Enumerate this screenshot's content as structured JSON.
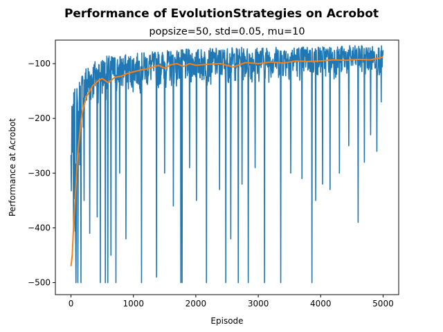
{
  "chart_data": {
    "type": "line",
    "title": "Performance of EvolutionStrategies on Acrobot",
    "subtitle": "popsize=50, std=0.05, mu=10",
    "xlabel": "Episode",
    "ylabel": "Performance at Acrobot",
    "xlim": [
      -250,
      5250
    ],
    "ylim": [
      -522,
      -57
    ],
    "xticks": [
      0,
      1000,
      2000,
      3000,
      4000,
      5000
    ],
    "yticks": [
      -500,
      -400,
      -300,
      -200,
      -100
    ],
    "grid": false,
    "legend": "none",
    "series": [
      {
        "role": "raw",
        "color": "#1f77b4",
        "x": [
          0,
          20,
          40,
          60,
          80,
          100,
          120,
          140,
          160,
          180,
          200,
          250,
          300,
          350,
          400,
          450,
          500,
          600,
          700,
          800,
          900,
          1000,
          1100,
          1200,
          1300,
          1400,
          1500,
          1600,
          1700,
          1800,
          1900,
          2000,
          2200,
          2400,
          2600,
          2800,
          3000,
          3200,
          3400,
          3600,
          3800,
          4000,
          4200,
          4400,
          4600,
          4800,
          5000
        ],
        "upper": [
          -193,
          -170,
          -155,
          -145,
          -140,
          -130,
          -125,
          -118,
          -112,
          -110,
          -105,
          -100,
          -97,
          -95,
          -92,
          -90,
          -88,
          -85,
          -84,
          -83,
          -83,
          -82,
          -80,
          -79,
          -78,
          -77,
          -76,
          -75,
          -74,
          -74,
          -73,
          -73,
          -72,
          -71,
          -70,
          -70,
          -69,
          -69,
          -68,
          -68,
          -68,
          -67,
          -67,
          -67,
          -67,
          -67,
          -67
        ],
        "lower": [
          -500,
          -500,
          -500,
          -500,
          -500,
          -430,
          -400,
          -350,
          -300,
          -270,
          -240,
          -220,
          -200,
          -190,
          -185,
          -180,
          -178,
          -175,
          -172,
          -170,
          -168,
          -165,
          -163,
          -160,
          -158,
          -157,
          -156,
          -155,
          -154,
          -153,
          -152,
          -150,
          -150,
          -148,
          -146,
          -145,
          -144,
          -142,
          -140,
          -140,
          -138,
          -137,
          -136,
          -135,
          -134,
          -132,
          -130
        ],
        "spikes": [
          {
            "x": 80,
            "y": -500
          },
          {
            "x": 110,
            "y": -500
          },
          {
            "x": 160,
            "y": -500
          },
          {
            "x": 210,
            "y": -350
          },
          {
            "x": 300,
            "y": -410
          },
          {
            "x": 420,
            "y": -380
          },
          {
            "x": 470,
            "y": -500
          },
          {
            "x": 550,
            "y": -500
          },
          {
            "x": 590,
            "y": -500
          },
          {
            "x": 640,
            "y": -450
          },
          {
            "x": 720,
            "y": -500
          },
          {
            "x": 780,
            "y": -300
          },
          {
            "x": 880,
            "y": -420
          },
          {
            "x": 1130,
            "y": -500
          },
          {
            "x": 1370,
            "y": -490
          },
          {
            "x": 1500,
            "y": -300
          },
          {
            "x": 1640,
            "y": -360
          },
          {
            "x": 1760,
            "y": -500
          },
          {
            "x": 1780,
            "y": -500
          },
          {
            "x": 1900,
            "y": -290
          },
          {
            "x": 2010,
            "y": -350
          },
          {
            "x": 2170,
            "y": -500
          },
          {
            "x": 2380,
            "y": -330
          },
          {
            "x": 2480,
            "y": -500
          },
          {
            "x": 2560,
            "y": -420
          },
          {
            "x": 2680,
            "y": -500
          },
          {
            "x": 2740,
            "y": -320
          },
          {
            "x": 2840,
            "y": -500
          },
          {
            "x": 2950,
            "y": -290
          },
          {
            "x": 3100,
            "y": -500
          },
          {
            "x": 3360,
            "y": -500
          },
          {
            "x": 3520,
            "y": -300
          },
          {
            "x": 3700,
            "y": -310
          },
          {
            "x": 3860,
            "y": -500
          },
          {
            "x": 3920,
            "y": -350
          },
          {
            "x": 4030,
            "y": -320
          },
          {
            "x": 4150,
            "y": -330
          },
          {
            "x": 4300,
            "y": -300
          },
          {
            "x": 4450,
            "y": -250
          },
          {
            "x": 4600,
            "y": -390
          },
          {
            "x": 4700,
            "y": -280
          },
          {
            "x": 4800,
            "y": -230
          },
          {
            "x": 4900,
            "y": -260
          },
          {
            "x": 4970,
            "y": -170
          }
        ]
      },
      {
        "role": "moving-average",
        "color": "#ff7f0e",
        "x": [
          0,
          20,
          40,
          60,
          80,
          100,
          120,
          140,
          160,
          180,
          200,
          250,
          300,
          350,
          400,
          450,
          500,
          600,
          700,
          800,
          900,
          1000,
          1100,
          1200,
          1300,
          1400,
          1500,
          1600,
          1700,
          1800,
          1900,
          2000,
          2200,
          2400,
          2600,
          2800,
          3000,
          3200,
          3400,
          3600,
          3800,
          4000,
          4200,
          4400,
          4600,
          4800,
          5000
        ],
        "y": [
          -470,
          -450,
          -400,
          -360,
          -320,
          -280,
          -250,
          -230,
          -205,
          -190,
          -180,
          -160,
          -150,
          -140,
          -135,
          -130,
          -127,
          -135,
          -125,
          -123,
          -118,
          -115,
          -112,
          -110,
          -107,
          -103,
          -108,
          -102,
          -100,
          -105,
          -100,
          -103,
          -101,
          -100,
          -106,
          -98,
          -100,
          -97,
          -99,
          -95,
          -96,
          -95,
          -93,
          -94,
          -92,
          -93,
          -88
        ]
      }
    ]
  }
}
